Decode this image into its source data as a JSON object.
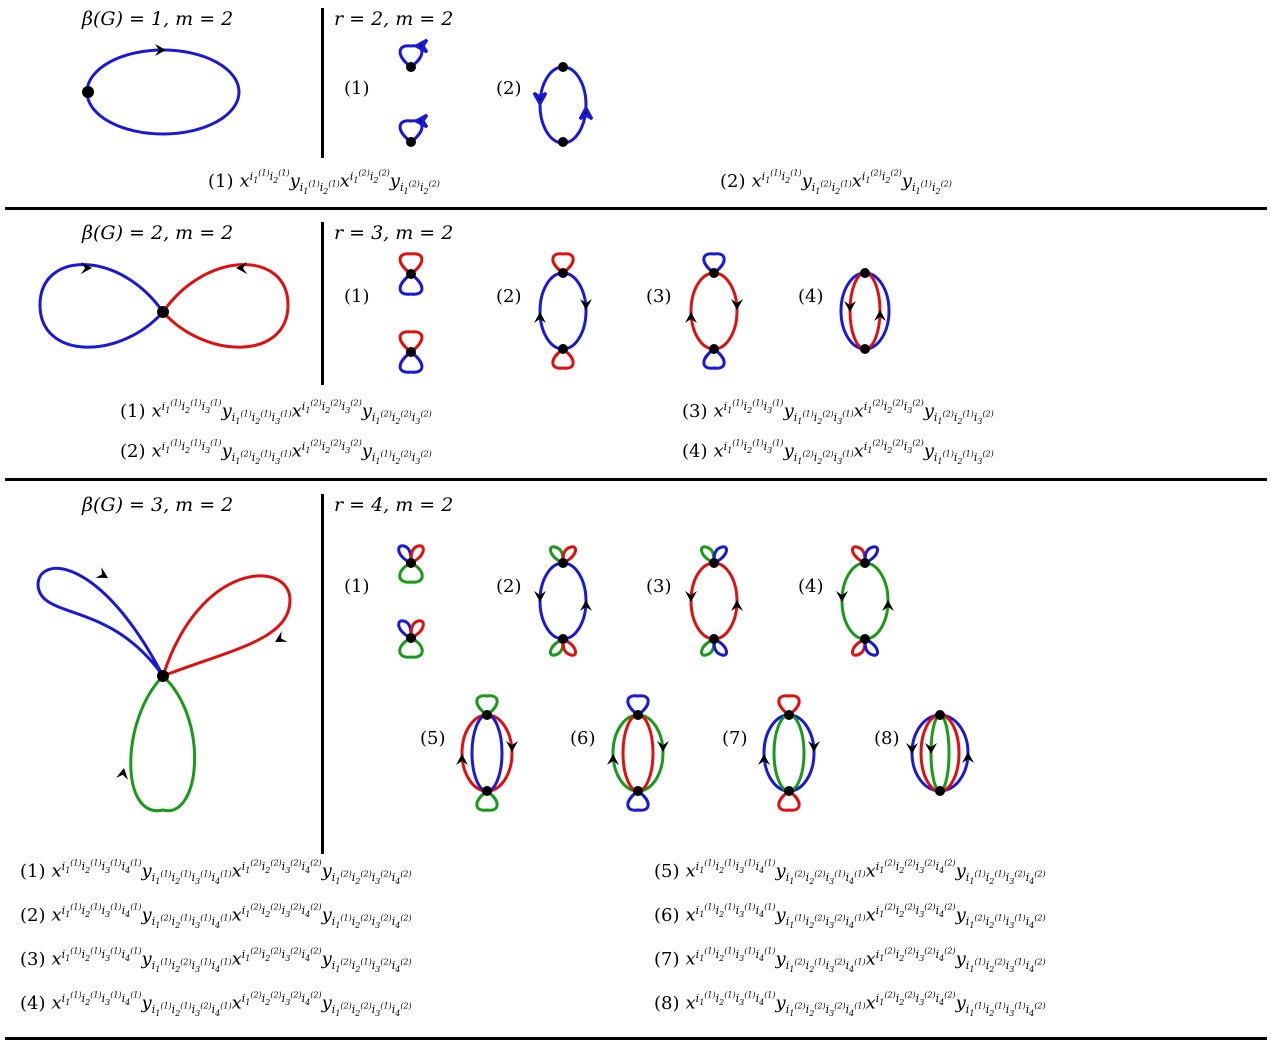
{
  "sections": [
    {
      "graph_label": "β(G) = 1, m = 2",
      "case_label": "r = 2, m = 2",
      "diagram_numbers": [
        "(1)",
        "(2)"
      ],
      "formulas": [
        {
          "num": "(1)",
          "x1": [
            "1",
            "1",
            "2",
            "1"
          ],
          "y1": [
            "1",
            "1",
            "2",
            "1"
          ],
          "x2": [
            "1",
            "2",
            "2",
            "2"
          ],
          "y2": [
            "1",
            "2",
            "2",
            "2"
          ]
        },
        {
          "num": "(2)",
          "x1": [
            "1",
            "1",
            "2",
            "1"
          ],
          "y1": [
            "1",
            "2",
            "2",
            "1"
          ],
          "x2": [
            "1",
            "2",
            "2",
            "2"
          ],
          "y2": [
            "1",
            "1",
            "2",
            "2"
          ]
        }
      ]
    },
    {
      "graph_label": "β(G) = 2, m = 2",
      "case_label": "r = 3, m = 2",
      "diagram_numbers": [
        "(1)",
        "(2)",
        "(3)",
        "(4)"
      ],
      "formulas": [
        {
          "num": "(1)",
          "xs": "(1)(1)(1)",
          "ys": "(1)(1)(1)",
          "xs2": "(2)(2)(2)",
          "ys2": "(2)(2)(2)"
        },
        {
          "num": "(2)",
          "xs": "(1)(1)(1)",
          "ys": "(2)(1)(1)",
          "xs2": "(2)(2)(2)",
          "ys2": "(1)(2)(2)"
        },
        {
          "num": "(3)",
          "xs": "(1)(1)(1)",
          "ys": "(1)(2)(1)",
          "xs2": "(2)(2)(2)",
          "ys2": "(2)(1)(2)"
        },
        {
          "num": "(4)",
          "xs": "(1)(1)(1)",
          "ys": "(2)(2)(1)",
          "xs2": "(2)(2)(2)",
          "ys2": "(1)(1)(2)"
        }
      ]
    },
    {
      "graph_label": "β(G) = 3, m = 2",
      "case_label": "r = 4, m = 2",
      "diagram_numbers": [
        "(1)",
        "(2)",
        "(3)",
        "(4)",
        "(5)",
        "(6)",
        "(7)",
        "(8)"
      ],
      "formulas": [
        {
          "num": "(1)",
          "ys": "(1)(1)(1)(1)",
          "ys2": "(2)(2)(2)(2)"
        },
        {
          "num": "(2)",
          "ys": "(2)(1)(1)(1)",
          "ys2": "(1)(2)(2)(2)"
        },
        {
          "num": "(3)",
          "ys": "(1)(2)(1)(1)",
          "ys2": "(2)(1)(2)(2)"
        },
        {
          "num": "(4)",
          "ys": "(1)(1)(2)(1)",
          "ys2": "(2)(2)(1)(2)"
        },
        {
          "num": "(5)",
          "ys": "(2)(2)(1)(1)",
          "ys2": "(1)(1)(2)(2)"
        },
        {
          "num": "(6)",
          "ys": "(1)(2)(2)(1)",
          "ys2": "(2)(1)(1)(2)"
        },
        {
          "num": "(7)",
          "ys": "(2)(1)(2)(1)",
          "ys2": "(1)(2)(1)(2)"
        },
        {
          "num": "(8)",
          "ys": "(2)(2)(2)(1)",
          "ys2": "(1)(1)(1)(2)"
        }
      ]
    }
  ],
  "colors": {
    "blue": "#1a1ad6",
    "red": "#e01010",
    "green": "#1a9a1a",
    "black": "#000000"
  }
}
